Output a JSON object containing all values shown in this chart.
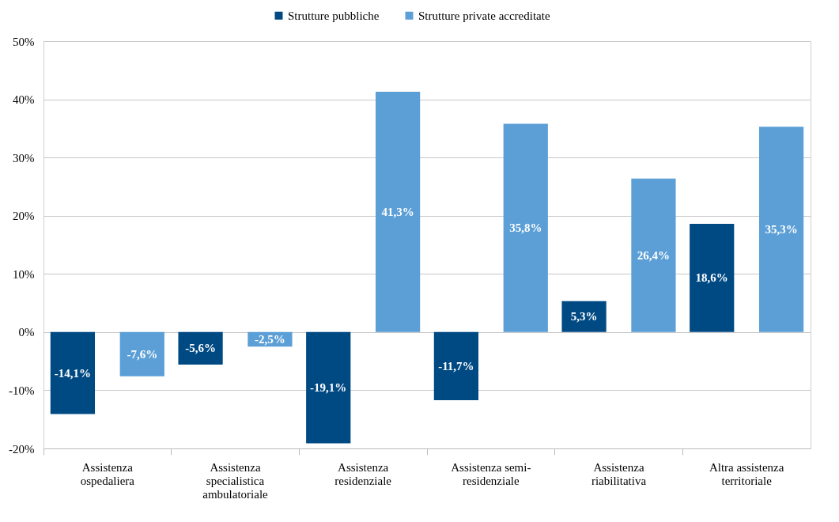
{
  "chart_data": {
    "type": "bar",
    "categories": [
      "Assistenza\nospedaliera",
      "Assistenza\nspecialistica\nambulatoriale",
      "Assistenza\nresidenziale",
      "Assistenza semi-\nresidenziale",
      "Assistenza\nriabilitativa",
      "Altra assistenza\nterritoriale"
    ],
    "series": [
      {
        "name": "Strutture pubbliche",
        "color": "#004a84",
        "values": [
          -14.1,
          -5.6,
          -19.1,
          -11.7,
          5.3,
          18.6
        ],
        "value_labels": [
          "-14,1%",
          "-5,6%",
          "-19,1%",
          "-11,7%",
          "5,3%",
          "18,6%"
        ]
      },
      {
        "name": "Strutture private accreditate",
        "color": "#5b9fd6",
        "values": [
          -7.6,
          -2.5,
          41.3,
          35.8,
          26.4,
          35.3
        ],
        "value_labels": [
          "-7,6%",
          "-2,5%",
          "41,3%",
          "35,8%",
          "26,4%",
          "35,3%"
        ]
      }
    ],
    "ylim": [
      -20,
      50
    ],
    "yticks": [
      {
        "value": -20,
        "label": "-20%"
      },
      {
        "value": -10,
        "label": "-10%"
      },
      {
        "value": 0,
        "label": "0%"
      },
      {
        "value": 10,
        "label": "10%"
      },
      {
        "value": 20,
        "label": "20%"
      },
      {
        "value": 30,
        "label": "30%"
      },
      {
        "value": 40,
        "label": "40%"
      },
      {
        "value": 50,
        "label": "50%"
      }
    ],
    "grid": "y",
    "legend": "top"
  }
}
